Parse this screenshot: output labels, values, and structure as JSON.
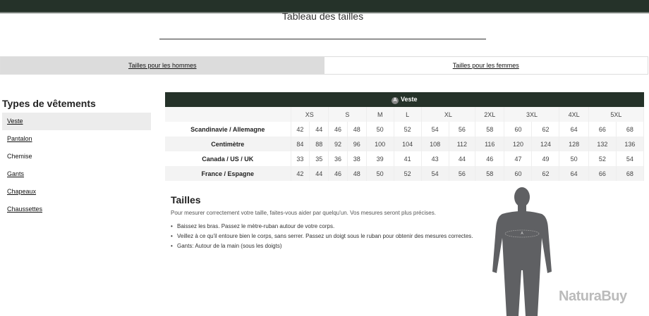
{
  "page": {
    "title": "Tableau des tailles"
  },
  "tabs": [
    {
      "label": "Tailles pour les hommes",
      "active": true
    },
    {
      "label": "Tailles pour les femmes",
      "active": false
    }
  ],
  "sidebar": {
    "heading": "Types de vêtements",
    "items": [
      "Veste",
      "Pantalon",
      "Chemise",
      "Gants",
      "Chapeaux",
      "Chaussettes"
    ],
    "active": "Veste"
  },
  "table": {
    "caption": "Veste",
    "badge": "A",
    "sizes": [
      {
        "label": "XS",
        "span": 2
      },
      {
        "label": "S",
        "span": 2
      },
      {
        "label": "M",
        "span": 1
      },
      {
        "label": "L",
        "span": 1
      },
      {
        "label": "XL",
        "span": 2
      },
      {
        "label": "2XL",
        "span": 1
      },
      {
        "label": "3XL",
        "span": 2
      },
      {
        "label": "4XL",
        "span": 1
      },
      {
        "label": "5XL",
        "span": 2
      }
    ],
    "rows": [
      {
        "label": "Scandinavie / Allemagne",
        "values": [
          "42",
          "44",
          "46",
          "48",
          "50",
          "52",
          "54",
          "56",
          "58",
          "60",
          "62",
          "64",
          "66",
          "68"
        ]
      },
      {
        "label": "Centimètre",
        "values": [
          "84",
          "88",
          "92",
          "96",
          "100",
          "104",
          "108",
          "112",
          "116",
          "120",
          "124",
          "128",
          "132",
          "136"
        ]
      },
      {
        "label": "Canada / US / UK",
        "values": [
          "33",
          "35",
          "36",
          "38",
          "39",
          "41",
          "43",
          "44",
          "46",
          "47",
          "49",
          "50",
          "52",
          "54"
        ]
      },
      {
        "label": "France / Espagne",
        "values": [
          "42",
          "44",
          "46",
          "48",
          "50",
          "52",
          "54",
          "56",
          "58",
          "60",
          "62",
          "64",
          "66",
          "68"
        ]
      }
    ]
  },
  "info": {
    "heading": "Tailles",
    "intro": "Pour mesurer correctement votre taille, faites-vous aider par quelqu'un. Vos mesures seront plus précises.",
    "bullets": [
      "Baissez les bras. Passez le mètre-ruban autour de votre corps.",
      "Veillez à ce qu'il entoure bien le corps, sans serrer. Passez un doigt sous le ruban pour obtenir des mesures correctes.",
      "Gants: Autour de la main (sous les doigts)"
    ]
  },
  "figure": {
    "marker": "A"
  },
  "watermark": "NaturaBuy",
  "colors": {
    "brand": "#253229"
  }
}
